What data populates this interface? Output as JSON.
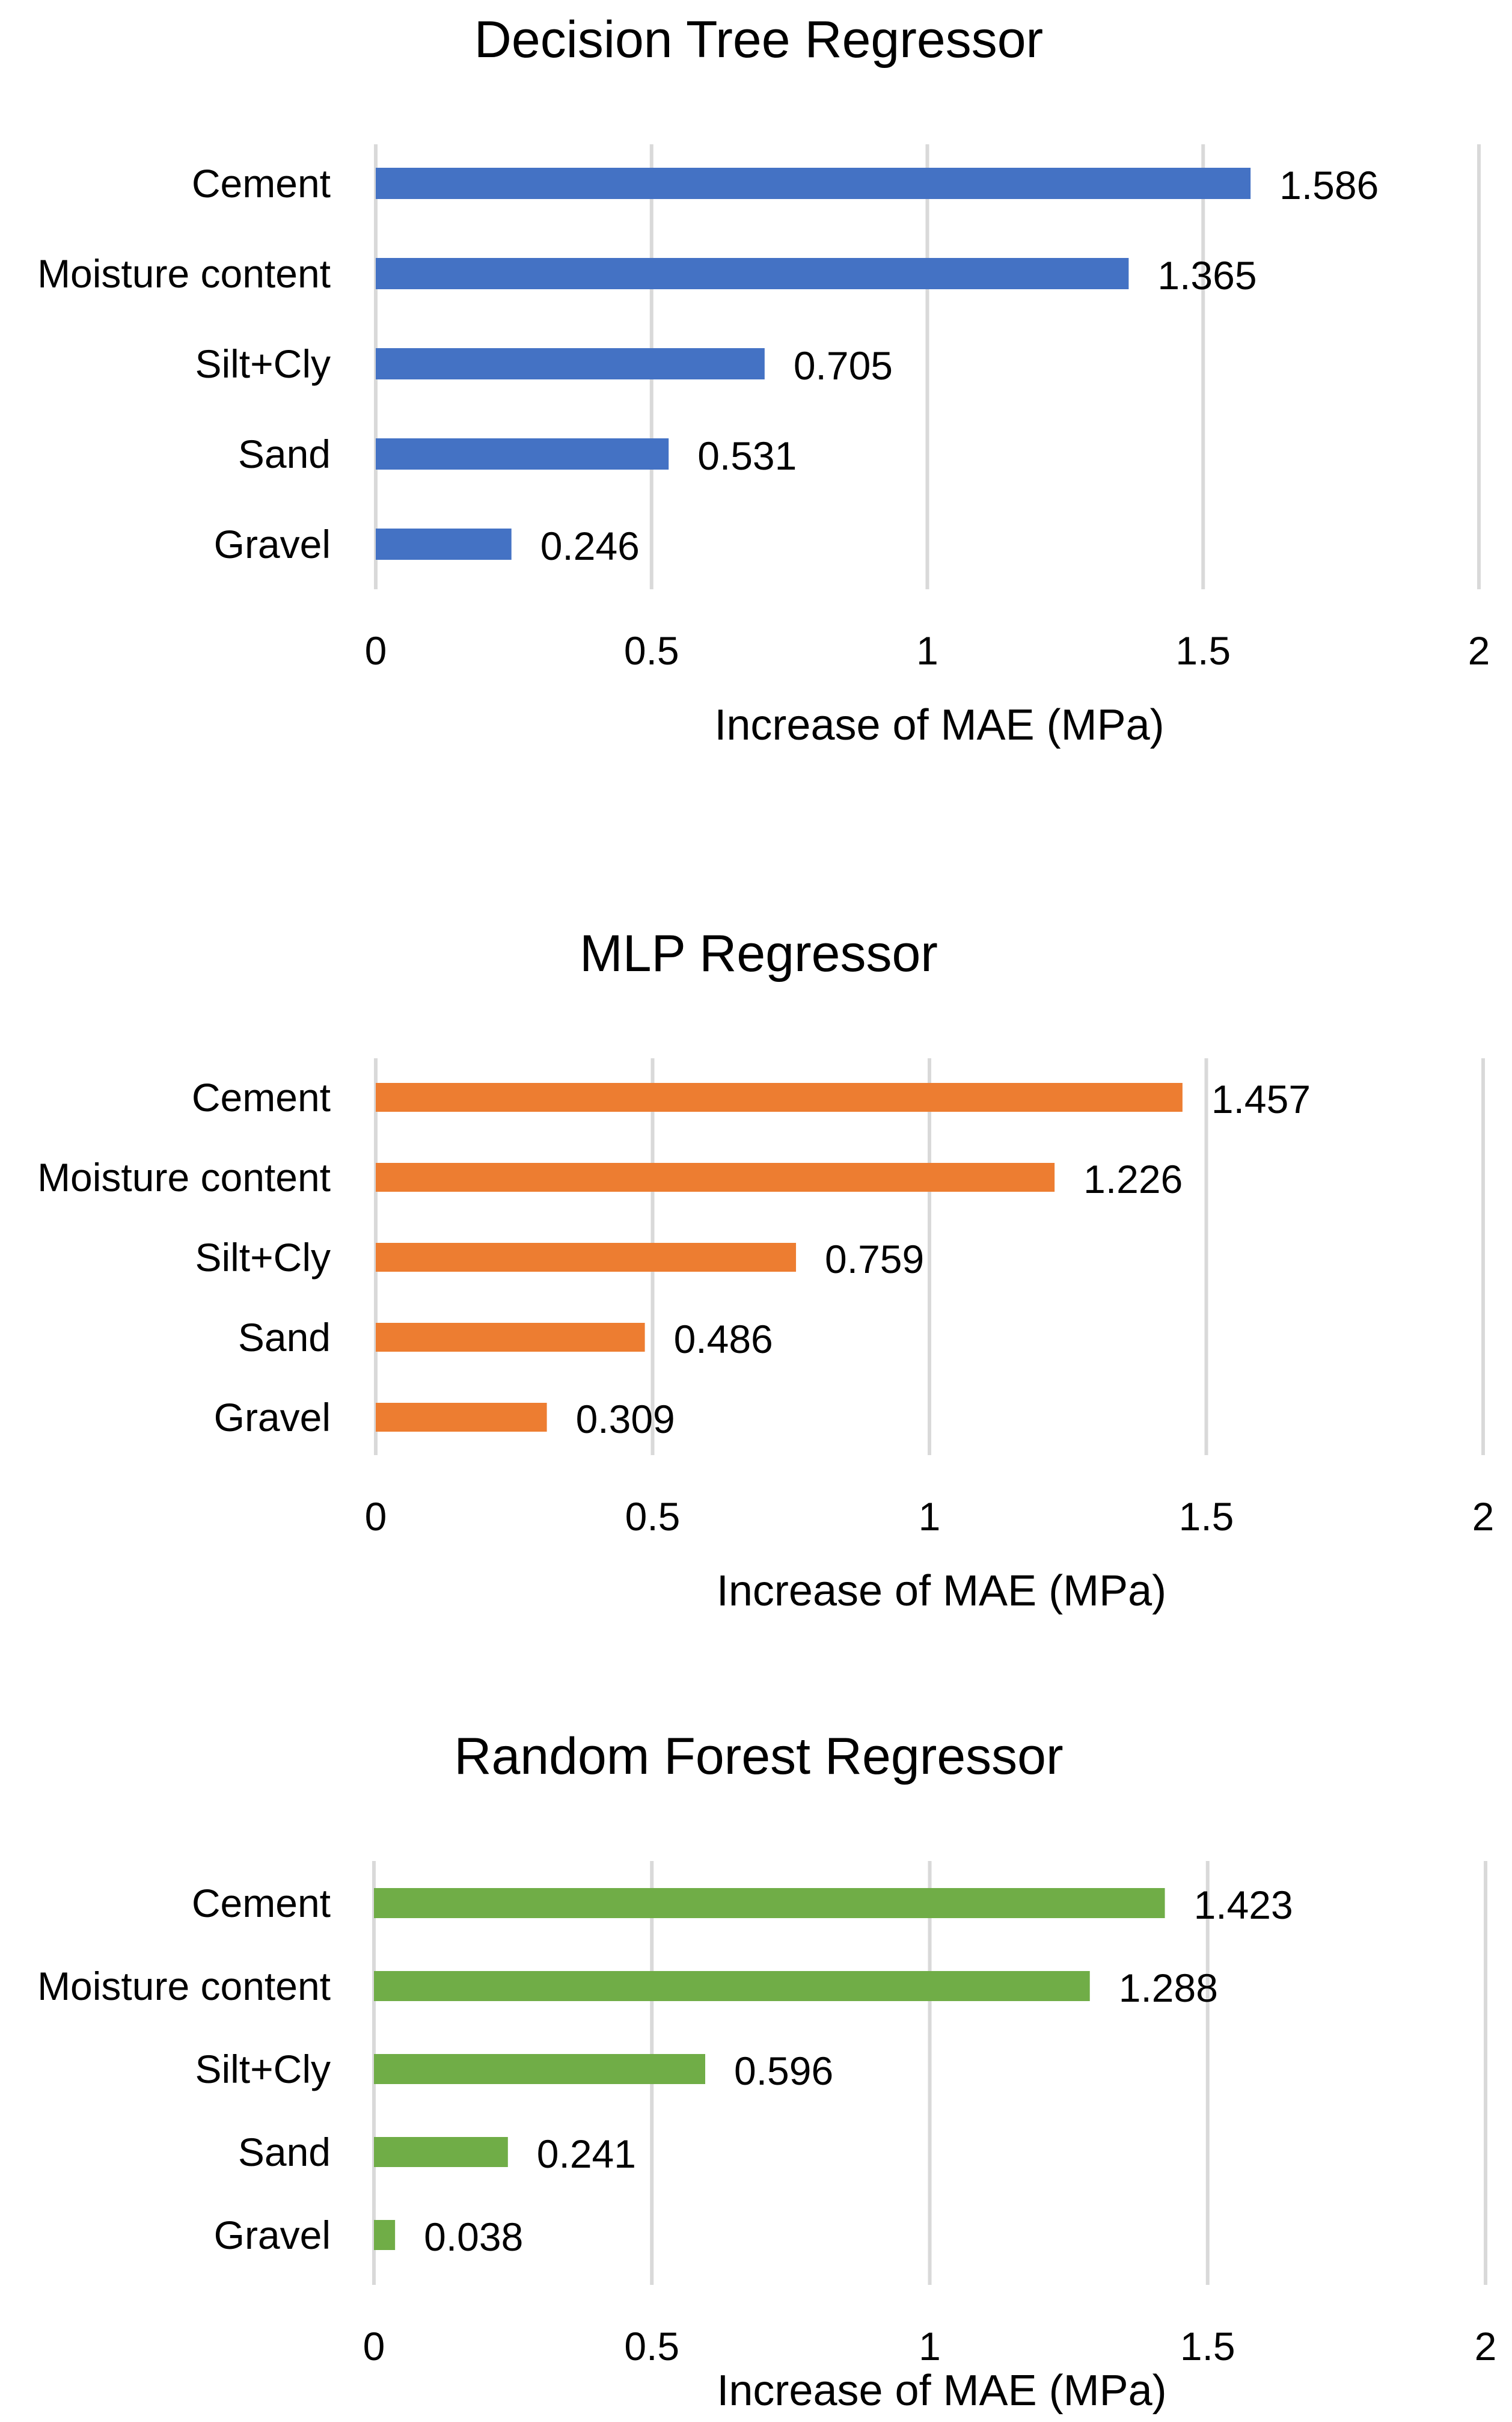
{
  "chart_data": [
    {
      "type": "bar",
      "orientation": "horizontal",
      "title": "Decision Tree Regressor",
      "categories": [
        "Cement",
        "Moisture content",
        "Silt+Cly",
        "Sand",
        "Gravel"
      ],
      "values": [
        1.586,
        1.365,
        0.705,
        0.531,
        0.246
      ],
      "value_labels": [
        "1.586",
        "1.365",
        "0.705",
        "0.531",
        "0.246"
      ],
      "xlabel": "Increase of MAE (MPa)",
      "ylabel": "",
      "xlim": [
        0,
        2
      ],
      "ticks": [
        0,
        0.5,
        1,
        1.5,
        2
      ],
      "tick_labels": [
        "0",
        "0.5",
        "1",
        "1.5",
        "2"
      ],
      "grid": true,
      "legend": "none",
      "color": "#4472C4"
    },
    {
      "type": "bar",
      "orientation": "horizontal",
      "title": "MLP Regressor",
      "categories": [
        "Cement",
        "Moisture content",
        "Silt+Cly",
        "Sand",
        "Gravel"
      ],
      "values": [
        1.457,
        1.226,
        0.759,
        0.486,
        0.309
      ],
      "value_labels": [
        "1.457",
        "1.226",
        "0.759",
        "0.486",
        "0.309"
      ],
      "xlabel": "Increase of MAE (MPa)",
      "ylabel": "",
      "xlim": [
        0,
        2
      ],
      "ticks": [
        0,
        0.5,
        1,
        1.5,
        2
      ],
      "tick_labels": [
        "0",
        "0.5",
        "1",
        "1.5",
        "2"
      ],
      "grid": true,
      "legend": "none",
      "color": "#ED7D31"
    },
    {
      "type": "bar",
      "orientation": "horizontal",
      "title": "Random Forest Regressor",
      "categories": [
        "Cement",
        "Moisture content",
        "Silt+Cly",
        "Sand",
        "Gravel"
      ],
      "values": [
        1.423,
        1.288,
        0.596,
        0.241,
        0.038
      ],
      "value_labels": [
        "1.423",
        "1.288",
        "0.596",
        "0.241",
        "0.038"
      ],
      "xlabel": "Increase of MAE (MPa)",
      "ylabel": "",
      "xlim": [
        0,
        2
      ],
      "ticks": [
        0,
        0.5,
        1,
        1.5,
        2
      ],
      "tick_labels": [
        "0",
        "0.5",
        "1",
        "1.5",
        "2"
      ],
      "grid": true,
      "legend": "none",
      "color": "#70AD47"
    }
  ]
}
